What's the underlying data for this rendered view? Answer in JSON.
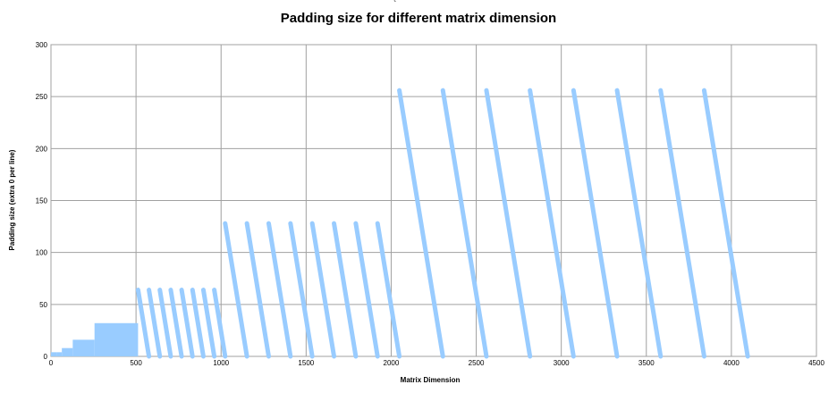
{
  "chart_data": {
    "type": "scatter",
    "title": "Padding size for different matrix dimension",
    "top_mark": "`",
    "xlabel": "Matrix Dimension",
    "ylabel": "Padding size (extra 0 per line)",
    "xlim": [
      0,
      4500
    ],
    "ylim": [
      0,
      300
    ],
    "x_ticks": [
      0,
      500,
      1000,
      1500,
      2000,
      2500,
      3000,
      3500,
      4000,
      4500
    ],
    "y_ticks": [
      0,
      50,
      100,
      150,
      200,
      250,
      300
    ],
    "grid": true,
    "series_color": "#99ccff",
    "description_of_pattern": "",
    "series": [
      {
        "segments": [
          {
            "x_start": 0,
            "x_end": 32,
            "y_max": 4,
            "y_min": 0
          },
          {
            "x_start": 32,
            "x_end": 64,
            "y_max": 4,
            "y_min": 0
          },
          {
            "x_start": 64,
            "x_end": 128,
            "y_max": 8,
            "y_min": 0
          },
          {
            "x_start": 128,
            "x_end": 256,
            "y_max": 16,
            "y_min": 0
          },
          {
            "x_start": 256,
            "x_end": 512,
            "y_max": 32,
            "y_min": 0
          },
          {
            "x_start": 512,
            "x_end": 1024,
            "y_max": 64,
            "y_min": 0,
            "period": 64
          },
          {
            "x_start": 1024,
            "x_end": 2048,
            "y_max": 128,
            "y_min": 0,
            "period": 128
          },
          {
            "x_start": 2048,
            "x_end": 4096,
            "y_max": 256,
            "y_min": 0,
            "period": 256
          }
        ]
      }
    ]
  }
}
